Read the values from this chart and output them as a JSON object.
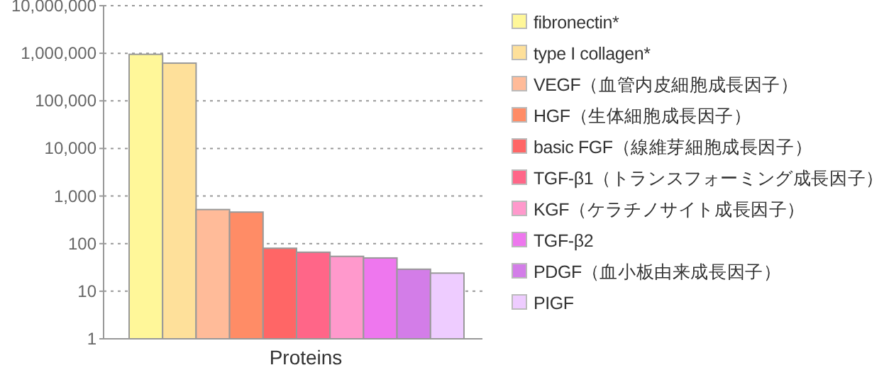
{
  "chart_data": {
    "type": "bar",
    "xlabel": "Proteins",
    "categories": [
      null
    ],
    "log": true,
    "ylim": [
      1,
      10000000
    ],
    "yticks": [
      {
        "value": 1,
        "label": "1"
      },
      {
        "value": 10,
        "label": "10"
      },
      {
        "value": 100,
        "label": "100"
      },
      {
        "value": 1000,
        "label": "1,000"
      },
      {
        "value": 10000,
        "label": "10,000"
      },
      {
        "value": 100000,
        "label": "100,000"
      },
      {
        "value": 1000000,
        "label": "1,000,000"
      },
      {
        "value": 10000000,
        "label": "10,000,000"
      }
    ],
    "grid": "y",
    "legend": "right",
    "series": [
      {
        "name": "fibronectin*",
        "color": "#fff799",
        "values": [
          950000
        ]
      },
      {
        "name": "type I collagen*",
        "color": "#fee09a",
        "values": [
          620000
        ]
      },
      {
        "name": "VEGF（血管内皮細胞成長因子）",
        "color": "#ffbb99",
        "values": [
          520
        ]
      },
      {
        "name": "HGF（生体細胞成長因子）",
        "color": "#ff8c66",
        "values": [
          460
        ]
      },
      {
        "name": "basic FGF（線維芽細胞成長因子）",
        "color": "#ff6666",
        "values": [
          80
        ]
      },
      {
        "name": "TGF-β1（トランスフォーミング成長因子）",
        "color": "#ff6688",
        "values": [
          66
        ]
      },
      {
        "name": "KGF（ケラチノサイト成長因子）",
        "color": "#ff99cc",
        "values": [
          54
        ]
      },
      {
        "name": "TGF-β2",
        "color": "#ee77ee",
        "values": [
          50
        ]
      },
      {
        "name": "PDGF（血小板由来成長因子）",
        "color": "#d37de8",
        "values": [
          29
        ]
      },
      {
        "name": "PIGF",
        "color": "#eeccff",
        "values": [
          24
        ]
      }
    ]
  }
}
